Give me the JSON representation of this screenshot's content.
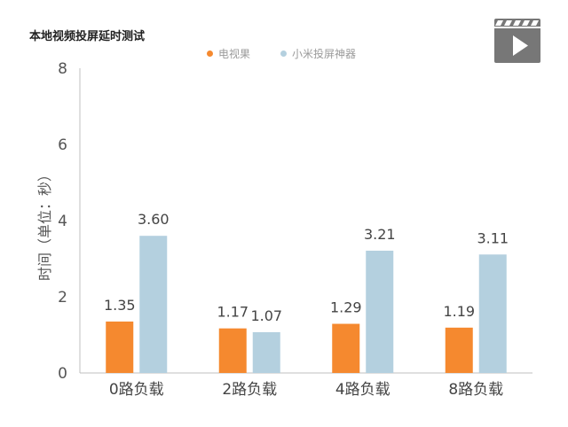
{
  "chart_title": "本地视频投屏延时测试",
  "colors": {
    "series1": "#F5892F",
    "series2": "#B4D0DF",
    "axis": "#BFBFBF",
    "icon": "#777777"
  },
  "icon": "video-clapper-icon",
  "chart_data": {
    "type": "bar",
    "title": "本地视频投屏延时测试",
    "xlabel": "",
    "ylabel": "时间（单位：秒）",
    "categories": [
      "0路负载",
      "2路负载",
      "4路负载",
      "8路负载"
    ],
    "series": [
      {
        "name": "电视果",
        "values": [
          1.35,
          1.17,
          1.29,
          1.19
        ],
        "labels": [
          "1.35",
          "1.17",
          "1.29",
          "1.19"
        ]
      },
      {
        "name": "小米投屏神器",
        "values": [
          3.6,
          1.07,
          3.21,
          3.11
        ],
        "labels": [
          "3.60",
          "1.07",
          "3.21",
          "3.11"
        ]
      }
    ],
    "ylim": [
      0,
      8
    ],
    "yticks": [
      "0",
      "2",
      "4",
      "6",
      "8"
    ],
    "grid": false,
    "legend": "top-center"
  }
}
